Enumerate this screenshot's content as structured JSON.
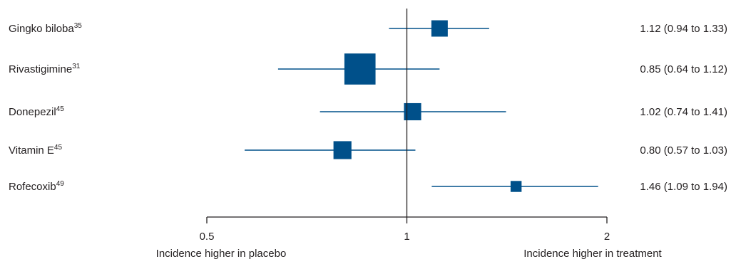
{
  "chart_data": {
    "type": "forest",
    "scale": "log",
    "xlim": [
      0.5,
      2
    ],
    "reference_line": 1,
    "x_ticks": [
      "0.5",
      "1",
      "2"
    ],
    "x_tick_values": [
      0.5,
      1,
      2
    ],
    "x_side_labels": {
      "left": "Incidence higher in placebo",
      "right": "Incidence higher in treatment"
    },
    "marker_color": "#00508a",
    "rows": [
      {
        "name": "Gingko biloba",
        "ref": "35",
        "estimate": 1.12,
        "lower": 0.94,
        "upper": 1.33,
        "label": "1.12 (0.94 to 1.33)",
        "weight": 1.0
      },
      {
        "name": "Rivastigimine",
        "ref": "31",
        "estimate": 0.85,
        "lower": 0.64,
        "upper": 1.12,
        "label": "0.85 (0.64 to 1.12)",
        "weight": 3.6
      },
      {
        "name": "Donepezil",
        "ref": "45",
        "estimate": 1.02,
        "lower": 0.74,
        "upper": 1.41,
        "label": "1.02 (0.74 to 1.41)",
        "weight": 1.1
      },
      {
        "name": "Vitamin E",
        "ref": "45",
        "estimate": 0.8,
        "lower": 0.57,
        "upper": 1.03,
        "label": "0.80 (0.57 to 1.03)",
        "weight": 1.2
      },
      {
        "name": "Rofecoxib",
        "ref": "49",
        "estimate": 1.46,
        "lower": 1.09,
        "upper": 1.94,
        "label": "1.46 (1.09 to 1.94)",
        "weight": 0.45
      }
    ]
  }
}
